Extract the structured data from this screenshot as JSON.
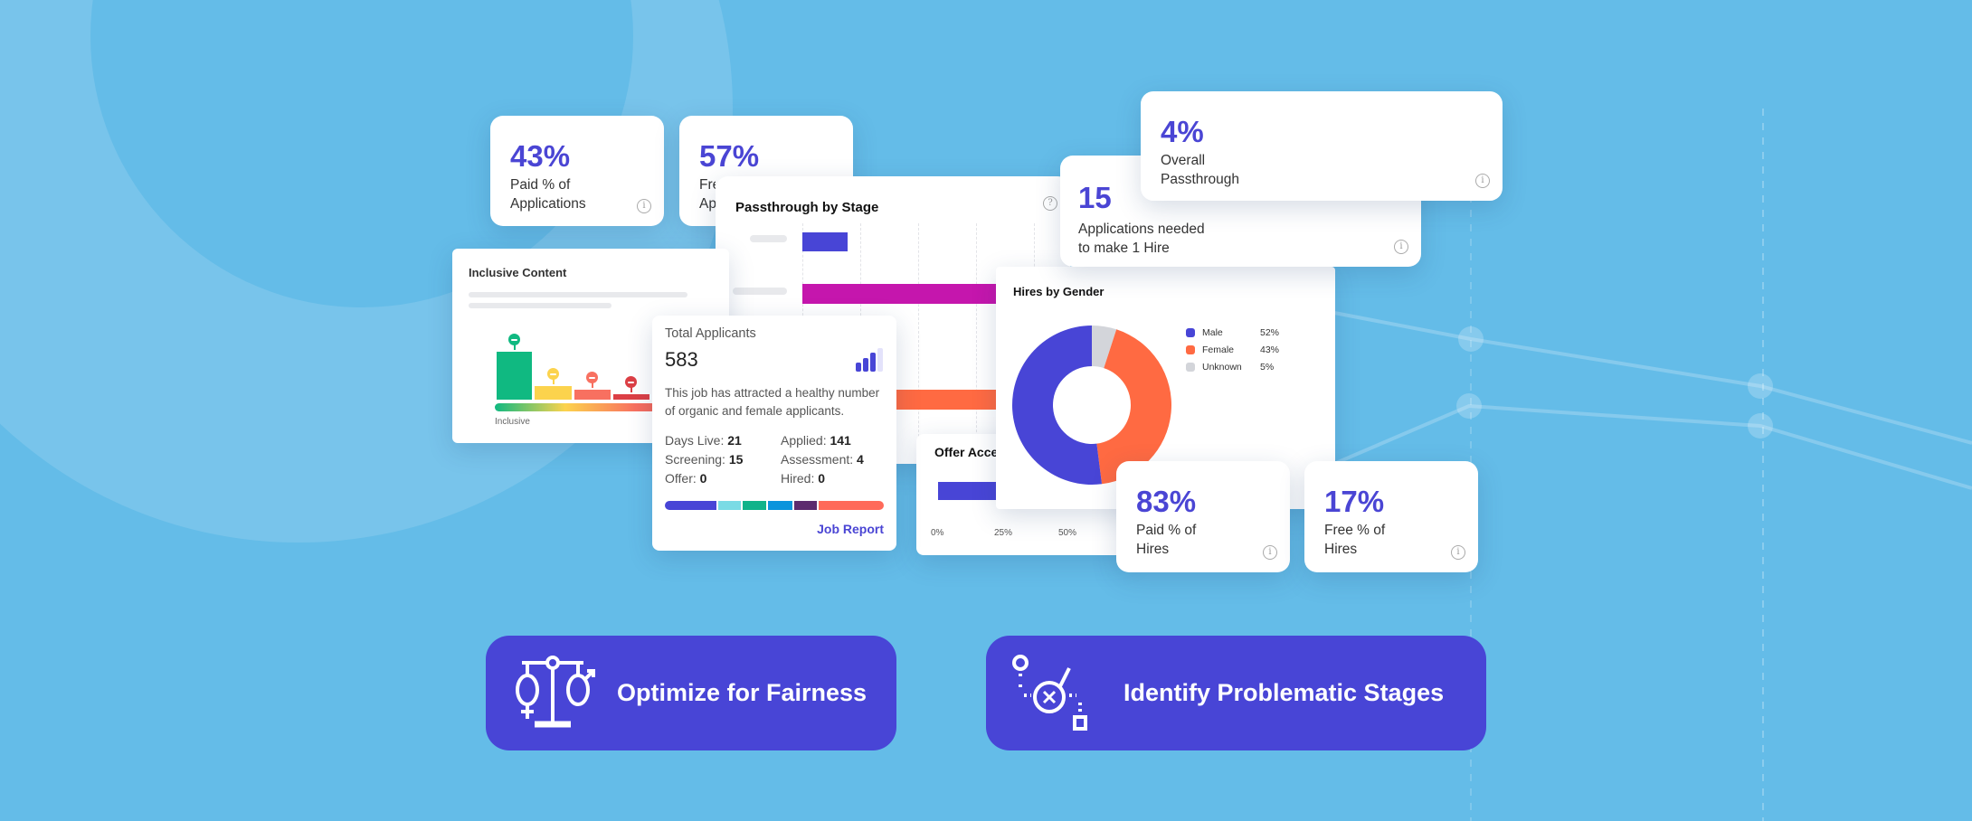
{
  "colors": {
    "background": "#64bce8",
    "primary": "#4a45d4",
    "male": "#4845d6",
    "female": "#ff6a42",
    "unknown": "#d3d5da",
    "magenta": "#c516ad"
  },
  "kpis": {
    "paid_applications": {
      "value": "43%",
      "label": "Paid % of\nApplications"
    },
    "free_applications": {
      "value": "57%",
      "label": "Free % of\nApplications"
    },
    "applications_per_hire": {
      "value": "15",
      "label": "Applications needed\nto make 1 Hire"
    },
    "overall_passthrough": {
      "value": "4%",
      "label": "Overall\nPassthrough"
    },
    "paid_hires": {
      "value": "83%",
      "label": "Paid % of\nHires"
    },
    "free_hires": {
      "value": "17%",
      "label": "Free % of\nHires"
    }
  },
  "passthrough": {
    "title": "Passthrough by Stage"
  },
  "inclusive": {
    "title": "Inclusive Content",
    "scale_label": "Inclusive"
  },
  "applicants": {
    "title": "Total Applicants",
    "count": "583",
    "description": "This job has attracted a healthy number of organic and female applicants.",
    "stats": [
      {
        "label": "Days Live:",
        "value": "21"
      },
      {
        "label": "Applied:",
        "value": "141"
      },
      {
        "label": "Screening:",
        "value": "15"
      },
      {
        "label": "Assessment:",
        "value": "4"
      },
      {
        "label": "Offer:",
        "value": "0"
      },
      {
        "label": "Hired:",
        "value": "0"
      }
    ],
    "link": "Job Report"
  },
  "offer": {
    "title": "Offer Acceptance",
    "ticks": [
      "0%",
      "25%",
      "50%"
    ]
  },
  "gender": {
    "title": "Hires by Gender",
    "segments": [
      {
        "label": "Male",
        "value": 52,
        "display": "52%",
        "color": "#4845d6"
      },
      {
        "label": "Female",
        "value": 43,
        "display": "43%",
        "color": "#ff6a42"
      },
      {
        "label": "Unknown",
        "value": 5,
        "display": "5%",
        "color": "#d3d5da"
      }
    ]
  },
  "buttons": {
    "fairness": "Optimize for Fairness",
    "stages": "Identify Problematic Stages"
  }
}
